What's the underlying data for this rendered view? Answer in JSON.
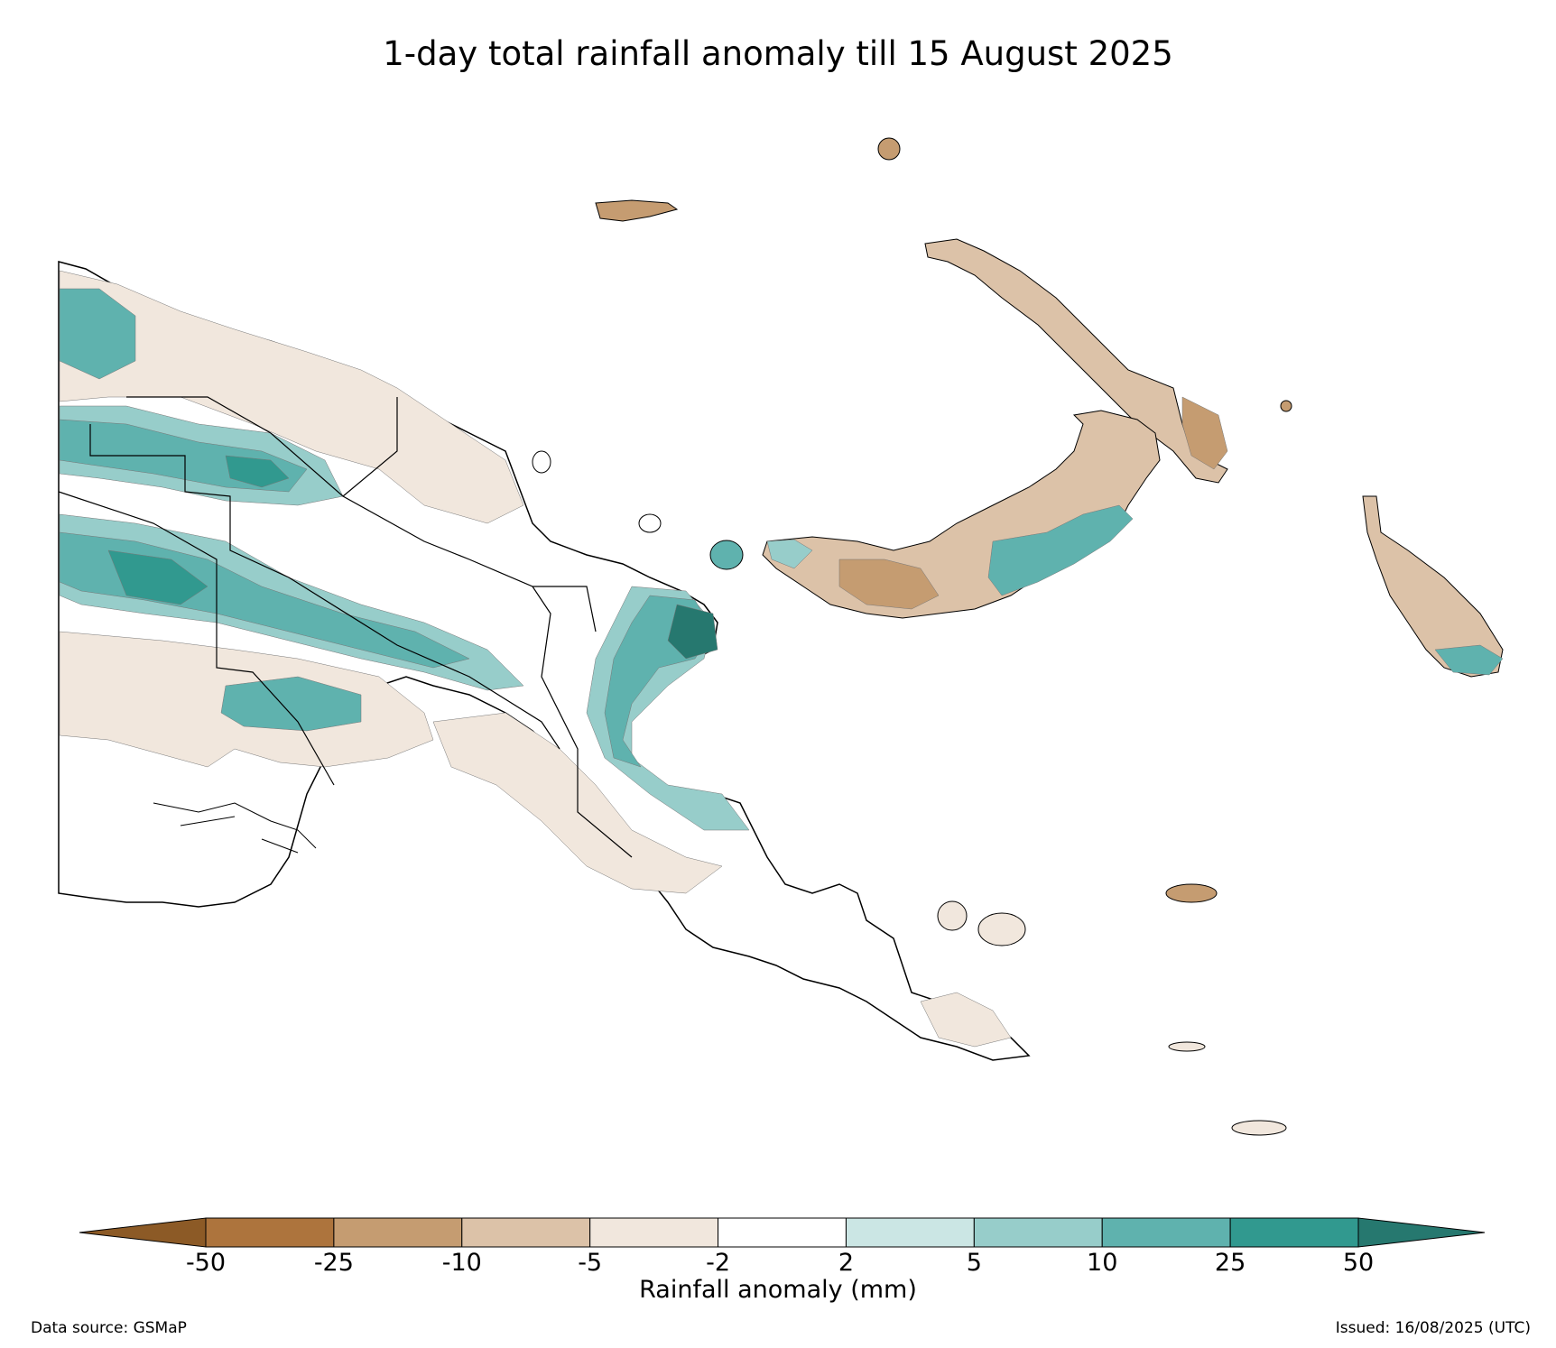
{
  "title": "1-day total rainfall anomaly till 15 August 2025",
  "legend": {
    "label": "Rainfall anomaly (mm)",
    "ticks": [
      "-50",
      "-25",
      "-10",
      "-5",
      "-2",
      "2",
      "5",
      "10",
      "25",
      "50"
    ],
    "bins": [
      {
        "range": "< -50",
        "color": "#8c5a26"
      },
      {
        "range": "-50 to -25",
        "color": "#ad743d"
      },
      {
        "range": "-25 to -10",
        "color": "#c59c71"
      },
      {
        "range": "-10 to -5",
        "color": "#dcc2a8"
      },
      {
        "range": "-5 to -2",
        "color": "#f1e7dd"
      },
      {
        "range": "-2 to 2",
        "color": "#ffffff"
      },
      {
        "range": "2 to 5",
        "color": "#cbe6e4"
      },
      {
        "range": "5 to 10",
        "color": "#97cdca"
      },
      {
        "range": "10 to 25",
        "color": "#5fb2ae"
      },
      {
        "range": "25 to 50",
        "color": "#31998f"
      },
      {
        "range": "> 50",
        "color": "#26786f"
      }
    ]
  },
  "footer": {
    "data_source": "Data source: GSMaP",
    "issued": "Issued: 16/08/2025 (UTC)"
  }
}
